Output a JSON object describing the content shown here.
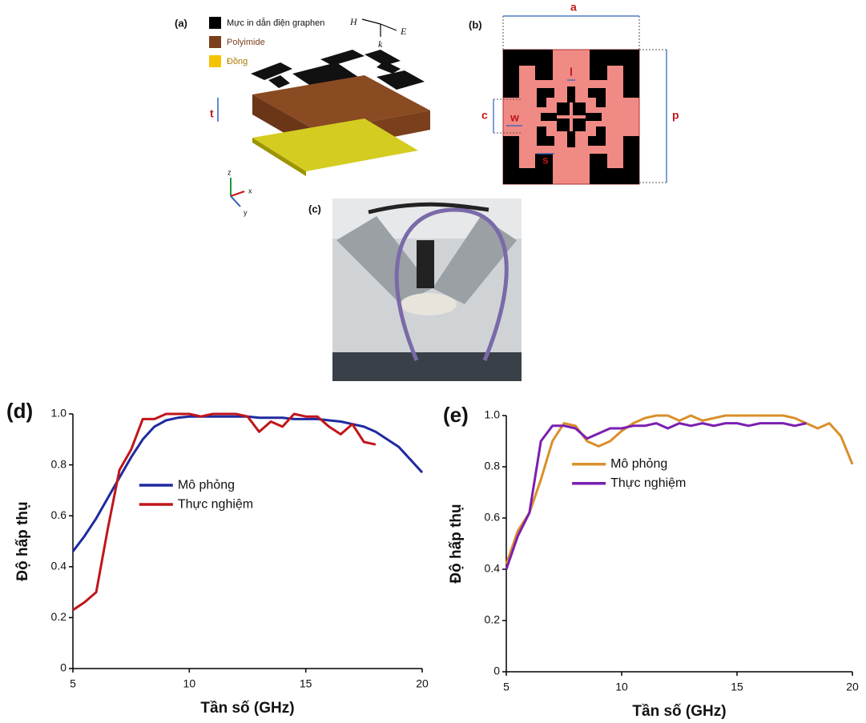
{
  "figure": {
    "a": {
      "panel": "(a)",
      "legend": [
        "Mực in dẫn điện graphen",
        "Polyimide",
        "Đồng"
      ],
      "field": [
        "H",
        "k",
        "E"
      ],
      "thickness": "t",
      "axes": [
        "z",
        "x",
        "y"
      ]
    },
    "b": {
      "panel": "(b)",
      "dims": [
        "a",
        "p",
        "c",
        "w",
        "l",
        "s"
      ]
    },
    "c": {
      "panel": "(c)"
    }
  },
  "chart_data": [
    {
      "type": "line",
      "panel": "(d)",
      "x_label": "Tần số (GHz)",
      "y_label": "Độ hấp thụ",
      "x": [
        5,
        5.5,
        6,
        6.5,
        7,
        7.5,
        8,
        8.5,
        9,
        9.5,
        10,
        10.5,
        11,
        11.5,
        12,
        12.5,
        13,
        13.5,
        14,
        14.5,
        15,
        15.5,
        16,
        16.5,
        17,
        17.5,
        18,
        18.5,
        19,
        19.5,
        20
      ],
      "series": [
        {
          "name": "Mô phỏng",
          "color": "#1f2aa0",
          "values": [
            0.46,
            0.52,
            0.59,
            0.67,
            0.75,
            0.83,
            0.9,
            0.95,
            0.975,
            0.985,
            0.99,
            0.99,
            0.99,
            0.99,
            0.99,
            0.99,
            0.985,
            0.985,
            0.985,
            0.98,
            0.98,
            0.98,
            0.975,
            0.97,
            0.96,
            0.95,
            0.93,
            0.9,
            0.87,
            0.82,
            0.77
          ]
        },
        {
          "name": "Thực nghiệm",
          "color": "#c0161b",
          "values": [
            0.23,
            0.26,
            0.3,
            0.55,
            0.78,
            0.86,
            0.98,
            0.98,
            1.0,
            1.0,
            1.0,
            0.99,
            1.0,
            1.0,
            1.0,
            0.99,
            0.93,
            0.97,
            0.95,
            1.0,
            0.99,
            0.99,
            0.95,
            0.92,
            0.96,
            0.89,
            0.88,
            null,
            null,
            null,
            null
          ]
        }
      ],
      "xlim": [
        5,
        20
      ],
      "ylim": [
        0,
        1
      ],
      "xticks": [
        5,
        10,
        15,
        20
      ],
      "yticks": [
        0,
        0.2,
        0.4,
        0.6,
        0.8,
        {
          "value": 1,
          "label": "1.0"
        }
      ],
      "legend": "center left"
    },
    {
      "type": "line",
      "panel": "(e)",
      "x_label": "Tần số (GHz)",
      "y_label": "Độ hấp thụ",
      "x": [
        5,
        5.5,
        6,
        6.5,
        7,
        7.5,
        8,
        8.5,
        9,
        9.5,
        10,
        10.5,
        11,
        11.5,
        12,
        12.5,
        13,
        13.5,
        14,
        14.5,
        15,
        15.5,
        16,
        16.5,
        17,
        17.5,
        18,
        18.5,
        19,
        19.5,
        20
      ],
      "series": [
        {
          "name": "Mô phỏng",
          "color": "#d98f2a",
          "values": [
            0.42,
            0.55,
            0.62,
            0.75,
            0.9,
            0.97,
            0.96,
            0.9,
            0.88,
            0.9,
            0.94,
            0.97,
            0.99,
            1.0,
            1.0,
            0.98,
            1.0,
            0.98,
            0.99,
            1.0,
            1.0,
            1.0,
            1.0,
            1.0,
            1.0,
            0.99,
            0.97,
            0.95,
            0.97,
            0.92,
            0.81
          ]
        },
        {
          "name": "Thực nghiệm",
          "color": "#7a1fb0",
          "values": [
            0.4,
            0.53,
            0.62,
            0.9,
            0.96,
            0.96,
            0.95,
            0.91,
            0.93,
            0.95,
            0.95,
            0.96,
            0.96,
            0.97,
            0.95,
            0.97,
            0.96,
            0.97,
            0.96,
            0.97,
            0.97,
            0.96,
            0.97,
            0.97,
            0.97,
            0.96,
            0.97,
            null,
            null,
            null,
            null
          ]
        }
      ],
      "xlim": [
        5,
        20
      ],
      "ylim": [
        0,
        1
      ],
      "xticks": [
        5,
        10,
        15,
        20
      ],
      "yticks": [
        0,
        0.2,
        0.4,
        0.6,
        0.8,
        {
          "value": 1,
          "label": "1.0"
        }
      ],
      "legend": "upper left"
    }
  ]
}
